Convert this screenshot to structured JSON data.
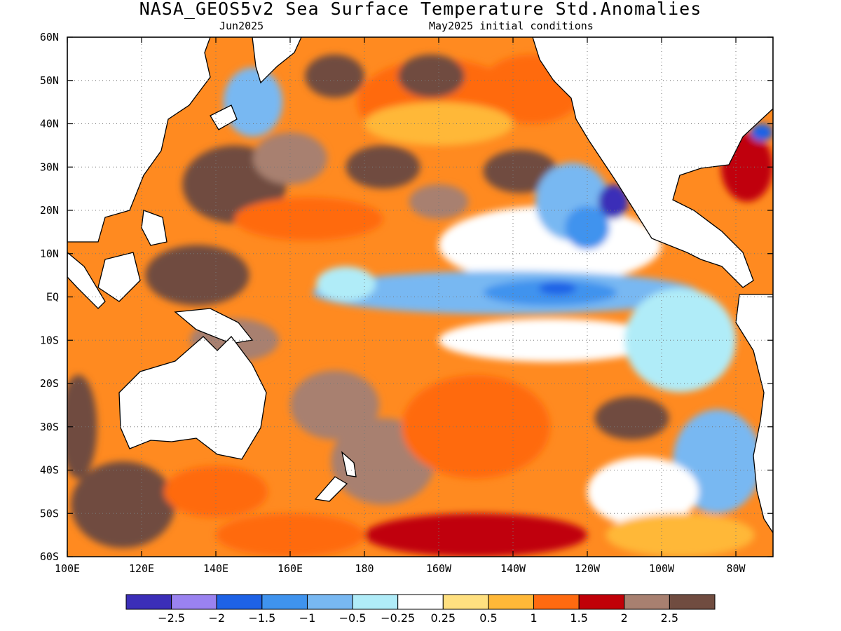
{
  "title": "NASA_GEOS5v2 Sea Surface Temperature Std.Anomalies",
  "subtitle_left": "Jun2025",
  "subtitle_right": "May2025 initial conditions",
  "map": {
    "lon_range": [
      100,
      290
    ],
    "lat_range": [
      -60,
      60
    ],
    "lat_ticks": [
      {
        "lat": 60,
        "label": "60N"
      },
      {
        "lat": 50,
        "label": "50N"
      },
      {
        "lat": 40,
        "label": "40N"
      },
      {
        "lat": 30,
        "label": "30N"
      },
      {
        "lat": 20,
        "label": "20N"
      },
      {
        "lat": 10,
        "label": "10N"
      },
      {
        "lat": 0,
        "label": "EQ"
      },
      {
        "lat": -10,
        "label": "10S"
      },
      {
        "lat": -20,
        "label": "20S"
      },
      {
        "lat": -30,
        "label": "30S"
      },
      {
        "lat": -40,
        "label": "40S"
      },
      {
        "lat": -50,
        "label": "50S"
      },
      {
        "lat": -60,
        "label": "60S"
      }
    ],
    "lon_ticks": [
      {
        "lon": 100,
        "label": "100E"
      },
      {
        "lon": 120,
        "label": "120E"
      },
      {
        "lon": 140,
        "label": "140E"
      },
      {
        "lon": 160,
        "label": "160E"
      },
      {
        "lon": 180,
        "label": "180"
      },
      {
        "lon": 200,
        "label": "160W"
      },
      {
        "lon": 220,
        "label": "140W"
      },
      {
        "lon": 240,
        "label": "120W"
      },
      {
        "lon": 260,
        "label": "100W"
      },
      {
        "lon": 280,
        "label": "80W"
      }
    ],
    "gridlines": "dotted",
    "land_color": "#ffffff",
    "coastline_color": "#000000"
  },
  "colorbar": {
    "colors": [
      "#3b2eb8",
      "#9a82f0",
      "#1e62e6",
      "#3f93ee",
      "#78b8f2",
      "#b0ecf8",
      "#ffffff",
      "#ffe080",
      "#ffb838",
      "#ff6a10",
      "#c00008",
      "#a88070",
      "#704c40"
    ],
    "labels": [
      "−2.5",
      "−2",
      "−1.5",
      "−1",
      "−0.5",
      "−0.25",
      "0.25",
      "0.5",
      "1",
      "1.5",
      "2",
      "2.5"
    ]
  },
  "anomaly_regions": [
    {
      "lon": 200,
      "lat": 45,
      "rx": 22,
      "ry": 10,
      "value": 1.4
    },
    {
      "lon": 225,
      "lat": 48,
      "rx": 14,
      "ry": 8,
      "value": 1.2
    },
    {
      "lon": 172,
      "lat": 51,
      "rx": 8,
      "ry": 5,
      "value": 2.7
    },
    {
      "lon": 198,
      "lat": 51,
      "rx": 9,
      "ry": 5,
      "value": 2.7
    },
    {
      "lon": 145,
      "lat": 26,
      "rx": 14,
      "ry": 9,
      "value": 2.7
    },
    {
      "lon": 160,
      "lat": 32,
      "rx": 10,
      "ry": 6,
      "value": 2.2
    },
    {
      "lon": 185,
      "lat": 30,
      "rx": 10,
      "ry": 5,
      "value": 2.7
    },
    {
      "lon": 200,
      "lat": 22,
      "rx": 8,
      "ry": 4,
      "value": 2.2
    },
    {
      "lon": 222,
      "lat": 29,
      "rx": 10,
      "ry": 5,
      "value": 2.7
    },
    {
      "lon": 165,
      "lat": 18,
      "rx": 20,
      "ry": 5,
      "value": 1.2
    },
    {
      "lon": 200,
      "lat": 40,
      "rx": 20,
      "ry": 5,
      "value": 0.7
    },
    {
      "lon": 230,
      "lat": 12,
      "rx": 30,
      "ry": 9,
      "value": 0.1
    },
    {
      "lon": 236,
      "lat": 22,
      "rx": 10,
      "ry": 9,
      "value": -0.7
    },
    {
      "lon": 247,
      "lat": 22,
      "rx": 4,
      "ry": 4,
      "value": -2.7
    },
    {
      "lon": 240,
      "lat": 16,
      "rx": 6,
      "ry": 5,
      "value": -1.2
    },
    {
      "lon": 218,
      "lat": 1,
      "rx": 52,
      "ry": 5,
      "value": -0.7
    },
    {
      "lon": 230,
      "lat": 1,
      "rx": 18,
      "ry": 3,
      "value": -1.2
    },
    {
      "lon": 232,
      "lat": 2,
      "rx": 5,
      "ry": 1.5,
      "value": -1.7
    },
    {
      "lon": 175,
      "lat": 3,
      "rx": 8,
      "ry": 4,
      "value": -0.3
    },
    {
      "lon": 230,
      "lat": -10,
      "rx": 30,
      "ry": 5,
      "value": 0.1
    },
    {
      "lon": 265,
      "lat": -10,
      "rx": 15,
      "ry": 12,
      "value": -0.4
    },
    {
      "lon": 135,
      "lat": 5,
      "rx": 14,
      "ry": 7,
      "value": 2.7
    },
    {
      "lon": 145,
      "lat": -10,
      "rx": 12,
      "ry": 5,
      "value": 2.2
    },
    {
      "lon": 172,
      "lat": -25,
      "rx": 12,
      "ry": 8,
      "value": 2.2
    },
    {
      "lon": 185,
      "lat": -38,
      "rx": 14,
      "ry": 10,
      "value": 2.0
    },
    {
      "lon": 210,
      "lat": -30,
      "rx": 20,
      "ry": 12,
      "value": 1.4
    },
    {
      "lon": 252,
      "lat": -28,
      "rx": 10,
      "ry": 5,
      "value": 2.7
    },
    {
      "lon": 275,
      "lat": -38,
      "rx": 12,
      "ry": 12,
      "value": -0.7
    },
    {
      "lon": 255,
      "lat": -45,
      "rx": 15,
      "ry": 8,
      "value": 0.2
    },
    {
      "lon": 115,
      "lat": -48,
      "rx": 14,
      "ry": 10,
      "value": 2.7
    },
    {
      "lon": 140,
      "lat": -45,
      "rx": 14,
      "ry": 6,
      "value": 1.4
    },
    {
      "lon": 160,
      "lat": -55,
      "rx": 20,
      "ry": 5,
      "value": 1.2
    },
    {
      "lon": 210,
      "lat": -55,
      "rx": 30,
      "ry": 5,
      "value": 1.6
    },
    {
      "lon": 265,
      "lat": -55,
      "rx": 20,
      "ry": 5,
      "value": 0.6
    },
    {
      "lon": 103,
      "lat": -30,
      "rx": 5,
      "ry": 12,
      "value": 2.7
    },
    {
      "lon": 150,
      "lat": 45,
      "rx": 8,
      "ry": 8,
      "value": -0.7
    },
    {
      "lon": 283,
      "lat": 30,
      "rx": 7,
      "ry": 8,
      "value": 1.6
    },
    {
      "lon": 287,
      "lat": 38,
      "rx": 3,
      "ry": 2,
      "value": -2.0
    }
  ]
}
